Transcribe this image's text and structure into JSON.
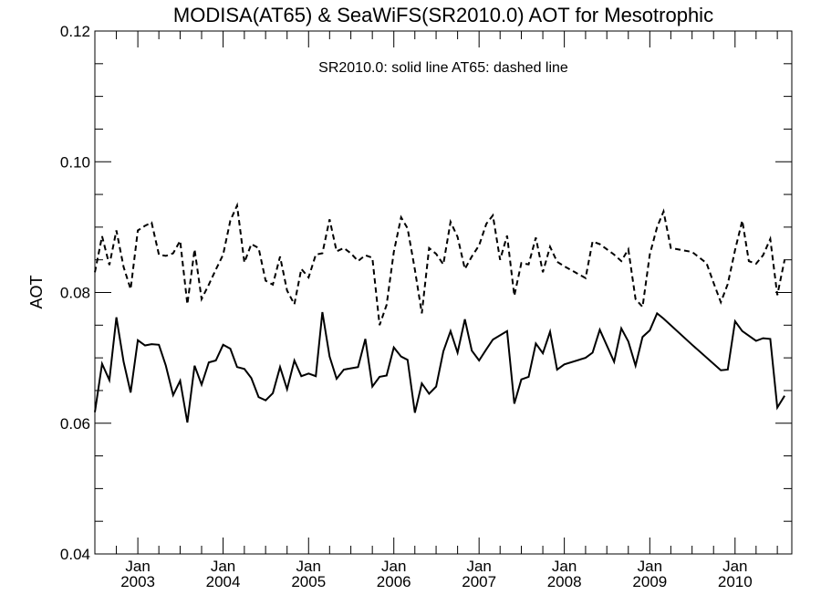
{
  "chart_data": {
    "type": "line",
    "title": "MODISA(AT65) & SeaWiFS(SR2010.0)  AOT for Mesotrophic",
    "annotation": "SR2010.0: solid line   AT65: dashed line",
    "xlabel": "",
    "ylabel": "AOT",
    "xlim": [
      "2002-07-01",
      "2010-09-01"
    ],
    "ylim": [
      0.04,
      0.12
    ],
    "y_ticks": [
      0.04,
      0.06,
      0.08,
      0.1,
      0.12
    ],
    "y_tick_labels": [
      "0.04",
      "0.06",
      "0.08",
      "0.10",
      "0.12"
    ],
    "x_ticks": [
      {
        "date": "2003-01-01",
        "month_label": "Jan",
        "year_label": "2003"
      },
      {
        "date": "2004-01-01",
        "month_label": "Jan",
        "year_label": "2004"
      },
      {
        "date": "2005-01-01",
        "month_label": "Jan",
        "year_label": "2005"
      },
      {
        "date": "2006-01-01",
        "month_label": "Jan",
        "year_label": "2006"
      },
      {
        "date": "2007-01-01",
        "month_label": "Jan",
        "year_label": "2007"
      },
      {
        "date": "2008-01-01",
        "month_label": "Jan",
        "year_label": "2008"
      },
      {
        "date": "2009-01-01",
        "month_label": "Jan",
        "year_label": "2009"
      },
      {
        "date": "2010-01-01",
        "month_label": "Jan",
        "year_label": "2010"
      }
    ],
    "grid": false,
    "series": [
      {
        "style": "solid",
        "color": "#000000",
        "x": [
          "2002-07-01",
          "2002-08-01",
          "2002-09-01",
          "2002-10-01",
          "2002-11-01",
          "2002-12-01",
          "2003-01-01",
          "2003-02-01",
          "2003-03-01",
          "2003-04-01",
          "2003-05-01",
          "2003-06-01",
          "2003-07-01",
          "2003-08-01",
          "2003-09-01",
          "2003-10-01",
          "2003-11-01",
          "2003-12-01",
          "2004-01-01",
          "2004-02-01",
          "2004-03-01",
          "2004-04-01",
          "2004-05-01",
          "2004-06-01",
          "2004-07-01",
          "2004-08-01",
          "2004-09-01",
          "2004-10-01",
          "2004-11-01",
          "2004-12-01",
          "2005-01-01",
          "2005-02-01",
          "2005-03-01",
          "2005-04-01",
          "2005-05-01",
          "2005-06-01",
          "2005-07-01",
          "2005-08-01",
          "2005-09-01",
          "2005-10-01",
          "2005-11-01",
          "2005-12-01",
          "2006-01-01",
          "2006-02-01",
          "2006-03-01",
          "2006-04-01",
          "2006-05-01",
          "2006-06-01",
          "2006-07-01",
          "2006-08-01",
          "2006-09-01",
          "2006-10-01",
          "2006-11-01",
          "2006-12-01",
          "2007-01-01",
          "2007-02-01",
          "2007-03-01",
          "2007-05-01",
          "2007-06-01",
          "2007-07-01",
          "2007-08-01",
          "2007-09-01",
          "2007-10-01",
          "2007-11-01",
          "2007-12-01",
          "2008-01-01",
          "2008-04-01",
          "2008-05-01",
          "2008-06-01",
          "2008-08-01",
          "2008-09-01",
          "2008-10-01",
          "2008-11-01",
          "2008-12-01",
          "2009-01-01",
          "2009-02-01",
          "2009-03-01",
          "2009-07-01",
          "2009-11-01",
          "2009-12-01",
          "2010-01-01",
          "2010-02-01",
          "2010-04-01",
          "2010-05-01",
          "2010-06-01",
          "2010-07-01",
          "2010-08-01"
        ],
        "y": [
          0.0617,
          0.0691,
          0.0666,
          0.0762,
          0.0694,
          0.0647,
          0.0727,
          0.0719,
          0.0721,
          0.072,
          0.0688,
          0.0643,
          0.0665,
          0.0601,
          0.0688,
          0.0659,
          0.0693,
          0.0696,
          0.072,
          0.0714,
          0.0686,
          0.0683,
          0.0669,
          0.064,
          0.0635,
          0.0646,
          0.0686,
          0.0652,
          0.0696,
          0.0672,
          0.0676,
          0.0672,
          0.077,
          0.0702,
          0.0668,
          0.0682,
          0.0684,
          0.0686,
          0.0729,
          0.0656,
          0.0671,
          0.0673,
          0.0716,
          0.0702,
          0.0697,
          0.0616,
          0.0661,
          0.0645,
          0.0656,
          0.071,
          0.0741,
          0.0708,
          0.0759,
          0.0711,
          0.0696,
          0.0713,
          0.0728,
          0.0741,
          0.063,
          0.0667,
          0.0671,
          0.0722,
          0.0707,
          0.074,
          0.0682,
          0.069,
          0.07,
          0.0708,
          0.0743,
          0.0694,
          0.0745,
          0.0725,
          0.0688,
          0.0732,
          0.0742,
          0.0768,
          0.076,
          0.072,
          0.0681,
          0.0682,
          0.0756,
          0.0741,
          0.0726,
          0.073,
          0.0729,
          0.0624,
          0.0642
        ]
      },
      {
        "style": "dashed",
        "color": "#000000",
        "x": [
          "2002-07-01",
          "2002-08-01",
          "2002-09-01",
          "2002-10-01",
          "2002-11-01",
          "2002-12-01",
          "2003-01-01",
          "2003-02-01",
          "2003-03-01",
          "2003-04-01",
          "2003-05-01",
          "2003-06-01",
          "2003-07-01",
          "2003-08-01",
          "2003-09-01",
          "2003-10-01",
          "2003-11-01",
          "2003-12-01",
          "2004-01-01",
          "2004-02-01",
          "2004-03-01",
          "2004-04-01",
          "2004-05-01",
          "2004-06-01",
          "2004-07-01",
          "2004-08-01",
          "2004-09-01",
          "2004-10-01",
          "2004-11-01",
          "2004-12-01",
          "2005-01-01",
          "2005-02-01",
          "2005-03-01",
          "2005-04-01",
          "2005-05-01",
          "2005-06-01",
          "2005-07-01",
          "2005-08-01",
          "2005-09-01",
          "2005-10-01",
          "2005-11-01",
          "2005-12-01",
          "2006-01-01",
          "2006-02-01",
          "2006-03-01",
          "2006-04-01",
          "2006-05-01",
          "2006-06-01",
          "2006-07-01",
          "2006-08-01",
          "2006-09-01",
          "2006-10-01",
          "2006-11-01",
          "2006-12-01",
          "2007-01-01",
          "2007-02-01",
          "2007-03-01",
          "2007-04-01",
          "2007-05-01",
          "2007-06-01",
          "2007-07-01",
          "2007-08-01",
          "2007-09-01",
          "2007-10-01",
          "2007-11-01",
          "2007-12-01",
          "2008-01-01",
          "2008-04-01",
          "2008-05-01",
          "2008-06-01",
          "2008-08-01",
          "2008-09-01",
          "2008-10-01",
          "2008-11-01",
          "2008-12-01",
          "2009-01-01",
          "2009-02-01",
          "2009-03-01",
          "2009-04-01",
          "2009-07-01",
          "2009-09-01",
          "2009-10-01",
          "2009-11-01",
          "2009-12-01",
          "2010-01-01",
          "2010-02-01",
          "2010-03-01",
          "2010-04-01",
          "2010-05-01",
          "2010-06-01",
          "2010-07-01",
          "2010-08-01"
        ],
        "y": [
          0.0831,
          0.0886,
          0.0842,
          0.0895,
          0.0839,
          0.0805,
          0.0895,
          0.0902,
          0.0907,
          0.0858,
          0.0856,
          0.086,
          0.0879,
          0.0782,
          0.0866,
          0.079,
          0.0812,
          0.0835,
          0.0858,
          0.091,
          0.0933,
          0.0846,
          0.0874,
          0.0868,
          0.0818,
          0.0812,
          0.0855,
          0.0803,
          0.0782,
          0.0836,
          0.0823,
          0.0858,
          0.086,
          0.0912,
          0.0863,
          0.0868,
          0.086,
          0.0848,
          0.0857,
          0.0853,
          0.075,
          0.0781,
          0.0862,
          0.0915,
          0.0898,
          0.0835,
          0.0768,
          0.0868,
          0.0859,
          0.0843,
          0.0908,
          0.0885,
          0.0836,
          0.0855,
          0.0872,
          0.0905,
          0.0918,
          0.085,
          0.0887,
          0.0795,
          0.0845,
          0.0843,
          0.0884,
          0.0831,
          0.087,
          0.0847,
          0.084,
          0.0822,
          0.0878,
          0.0874,
          0.0858,
          0.0848,
          0.0866,
          0.079,
          0.0778,
          0.0858,
          0.09,
          0.0924,
          0.0868,
          0.0862,
          0.0845,
          0.0815,
          0.0785,
          0.0813,
          0.0865,
          0.091,
          0.0848,
          0.0844,
          0.0857,
          0.0882,
          0.0796,
          0.085
        ]
      }
    ]
  }
}
